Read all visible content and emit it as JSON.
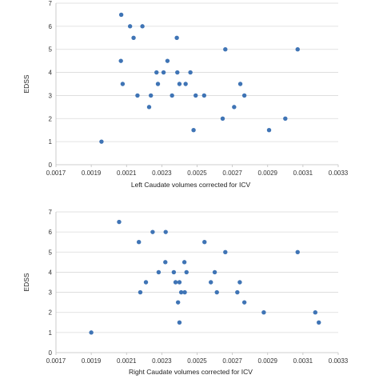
{
  "chart_data": [
    {
      "type": "scatter",
      "title": "",
      "xlabel": "Left Caudate volumes corrected for ICV",
      "ylabel": "EDSS",
      "xlim": [
        0.0017,
        0.0033
      ],
      "ylim": [
        0,
        7
      ],
      "x_ticks": [
        "0.0017",
        "0.0019",
        "0.0021",
        "0.0023",
        "0.0025",
        "0.0027",
        "0.0029",
        "0.0031",
        "0.0033"
      ],
      "y_ticks": [
        "0",
        "1",
        "2",
        "3",
        "4",
        "5",
        "6",
        "7"
      ],
      "grid": "horizontal",
      "color": "#3f74b5",
      "points": [
        {
          "x": 0.001958,
          "y": 1.0
        },
        {
          "x": 0.00207,
          "y": 6.5
        },
        {
          "x": 0.002068,
          "y": 4.5
        },
        {
          "x": 0.002078,
          "y": 3.5
        },
        {
          "x": 0.00212,
          "y": 6.0
        },
        {
          "x": 0.00214,
          "y": 5.5
        },
        {
          "x": 0.002162,
          "y": 3.0
        },
        {
          "x": 0.00219,
          "y": 6.0
        },
        {
          "x": 0.002228,
          "y": 2.5
        },
        {
          "x": 0.002238,
          "y": 3.0
        },
        {
          "x": 0.00227,
          "y": 4.0
        },
        {
          "x": 0.002278,
          "y": 3.5
        },
        {
          "x": 0.00231,
          "y": 4.0
        },
        {
          "x": 0.002332,
          "y": 4.5
        },
        {
          "x": 0.002358,
          "y": 3.0
        },
        {
          "x": 0.002385,
          "y": 5.5
        },
        {
          "x": 0.002388,
          "y": 4.0
        },
        {
          "x": 0.0024,
          "y": 3.5
        },
        {
          "x": 0.002435,
          "y": 3.5
        },
        {
          "x": 0.002462,
          "y": 4.0
        },
        {
          "x": 0.00248,
          "y": 1.5
        },
        {
          "x": 0.002492,
          "y": 3.0
        },
        {
          "x": 0.00254,
          "y": 3.0
        },
        {
          "x": 0.002645,
          "y": 2.0
        },
        {
          "x": 0.00266,
          "y": 5.0
        },
        {
          "x": 0.00271,
          "y": 2.5
        },
        {
          "x": 0.002745,
          "y": 3.5
        },
        {
          "x": 0.002768,
          "y": 3.0
        },
        {
          "x": 0.002908,
          "y": 1.5
        },
        {
          "x": 0.003,
          "y": 2.0
        },
        {
          "x": 0.00307,
          "y": 5.0
        }
      ]
    },
    {
      "type": "scatter",
      "title": "",
      "xlabel": "Right Caudate volumes corrected for ICV",
      "ylabel": "EDSS",
      "xlim": [
        0.0017,
        0.0033
      ],
      "ylim": [
        0,
        7
      ],
      "x_ticks": [
        "0.0017",
        "0.0019",
        "0.0021",
        "0.0023",
        "0.0025",
        "0.0027",
        "0.0029",
        "0.0031",
        "0.0033"
      ],
      "y_ticks": [
        "0",
        "1",
        "2",
        "3",
        "4",
        "5",
        "6",
        "7"
      ],
      "grid": "horizontal",
      "color": "#3f74b5",
      "points": [
        {
          "x": 0.0019,
          "y": 1.0
        },
        {
          "x": 0.002058,
          "y": 6.5
        },
        {
          "x": 0.00217,
          "y": 5.5
        },
        {
          "x": 0.002178,
          "y": 3.0
        },
        {
          "x": 0.00221,
          "y": 3.5
        },
        {
          "x": 0.002248,
          "y": 6.0
        },
        {
          "x": 0.002282,
          "y": 4.0
        },
        {
          "x": 0.00232,
          "y": 4.5
        },
        {
          "x": 0.002322,
          "y": 6.0
        },
        {
          "x": 0.002368,
          "y": 4.0
        },
        {
          "x": 0.002378,
          "y": 3.5
        },
        {
          "x": 0.002392,
          "y": 2.5
        },
        {
          "x": 0.0024,
          "y": 3.5
        },
        {
          "x": 0.0024,
          "y": 1.5
        },
        {
          "x": 0.00241,
          "y": 3.0
        },
        {
          "x": 0.00243,
          "y": 3.0
        },
        {
          "x": 0.002428,
          "y": 4.5
        },
        {
          "x": 0.00244,
          "y": 4.0
        },
        {
          "x": 0.002542,
          "y": 5.5
        },
        {
          "x": 0.002578,
          "y": 3.5
        },
        {
          "x": 0.0026,
          "y": 4.0
        },
        {
          "x": 0.002612,
          "y": 3.0
        },
        {
          "x": 0.00266,
          "y": 5.0
        },
        {
          "x": 0.002728,
          "y": 3.0
        },
        {
          "x": 0.002742,
          "y": 3.5
        },
        {
          "x": 0.002768,
          "y": 2.5
        },
        {
          "x": 0.002878,
          "y": 2.0
        },
        {
          "x": 0.00307,
          "y": 5.0
        },
        {
          "x": 0.00317,
          "y": 2.0
        },
        {
          "x": 0.00319,
          "y": 1.5
        }
      ]
    }
  ]
}
